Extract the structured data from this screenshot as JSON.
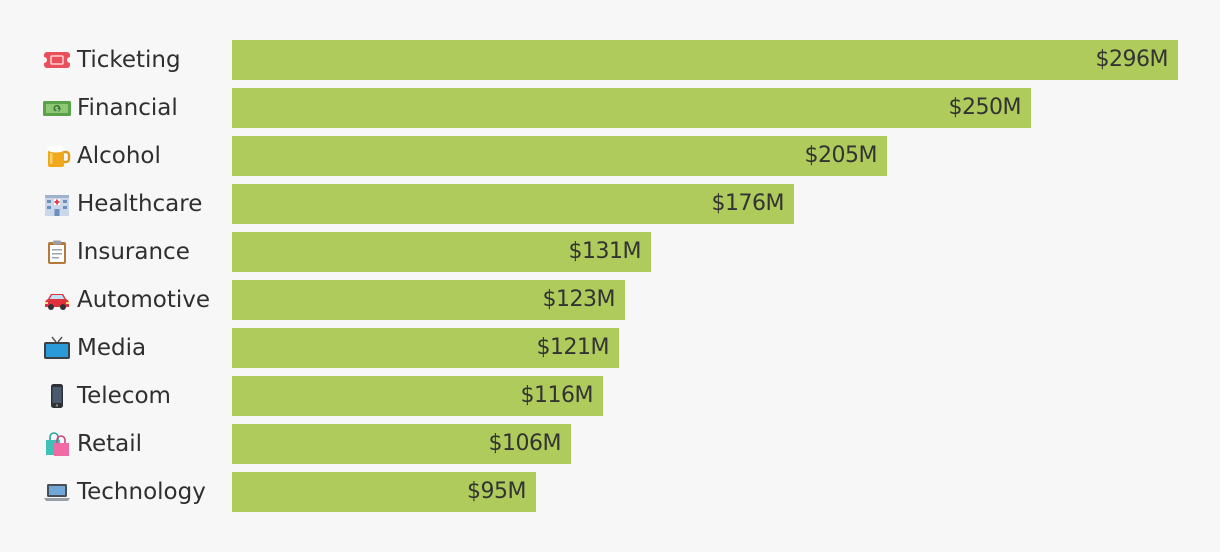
{
  "chart_data": {
    "type": "bar",
    "orientation": "horizontal",
    "title": "",
    "xlabel": "",
    "ylabel": "",
    "bar_color": "#aecb5b",
    "xlim": [
      0,
      296
    ],
    "grid": false,
    "categories": [
      "Ticketing",
      "Financial",
      "Alcohol",
      "Healthcare",
      "Insurance",
      "Automotive",
      "Media",
      "Telecom",
      "Retail",
      "Technology"
    ],
    "icons": [
      "ticket-icon",
      "money-icon",
      "beer-mug-icon",
      "hospital-icon",
      "clipboard-icon",
      "car-icon",
      "tv-icon",
      "mobile-phone-icon",
      "shopping-bags-icon",
      "laptop-icon"
    ],
    "values": [
      296,
      250,
      205,
      176,
      131,
      123,
      121,
      116,
      106,
      95
    ],
    "value_labels": [
      "$296M",
      "$250M",
      "$205M",
      "$176M",
      "$131M",
      "$123M",
      "$121M",
      "$116M",
      "$106M",
      "$95M"
    ]
  }
}
